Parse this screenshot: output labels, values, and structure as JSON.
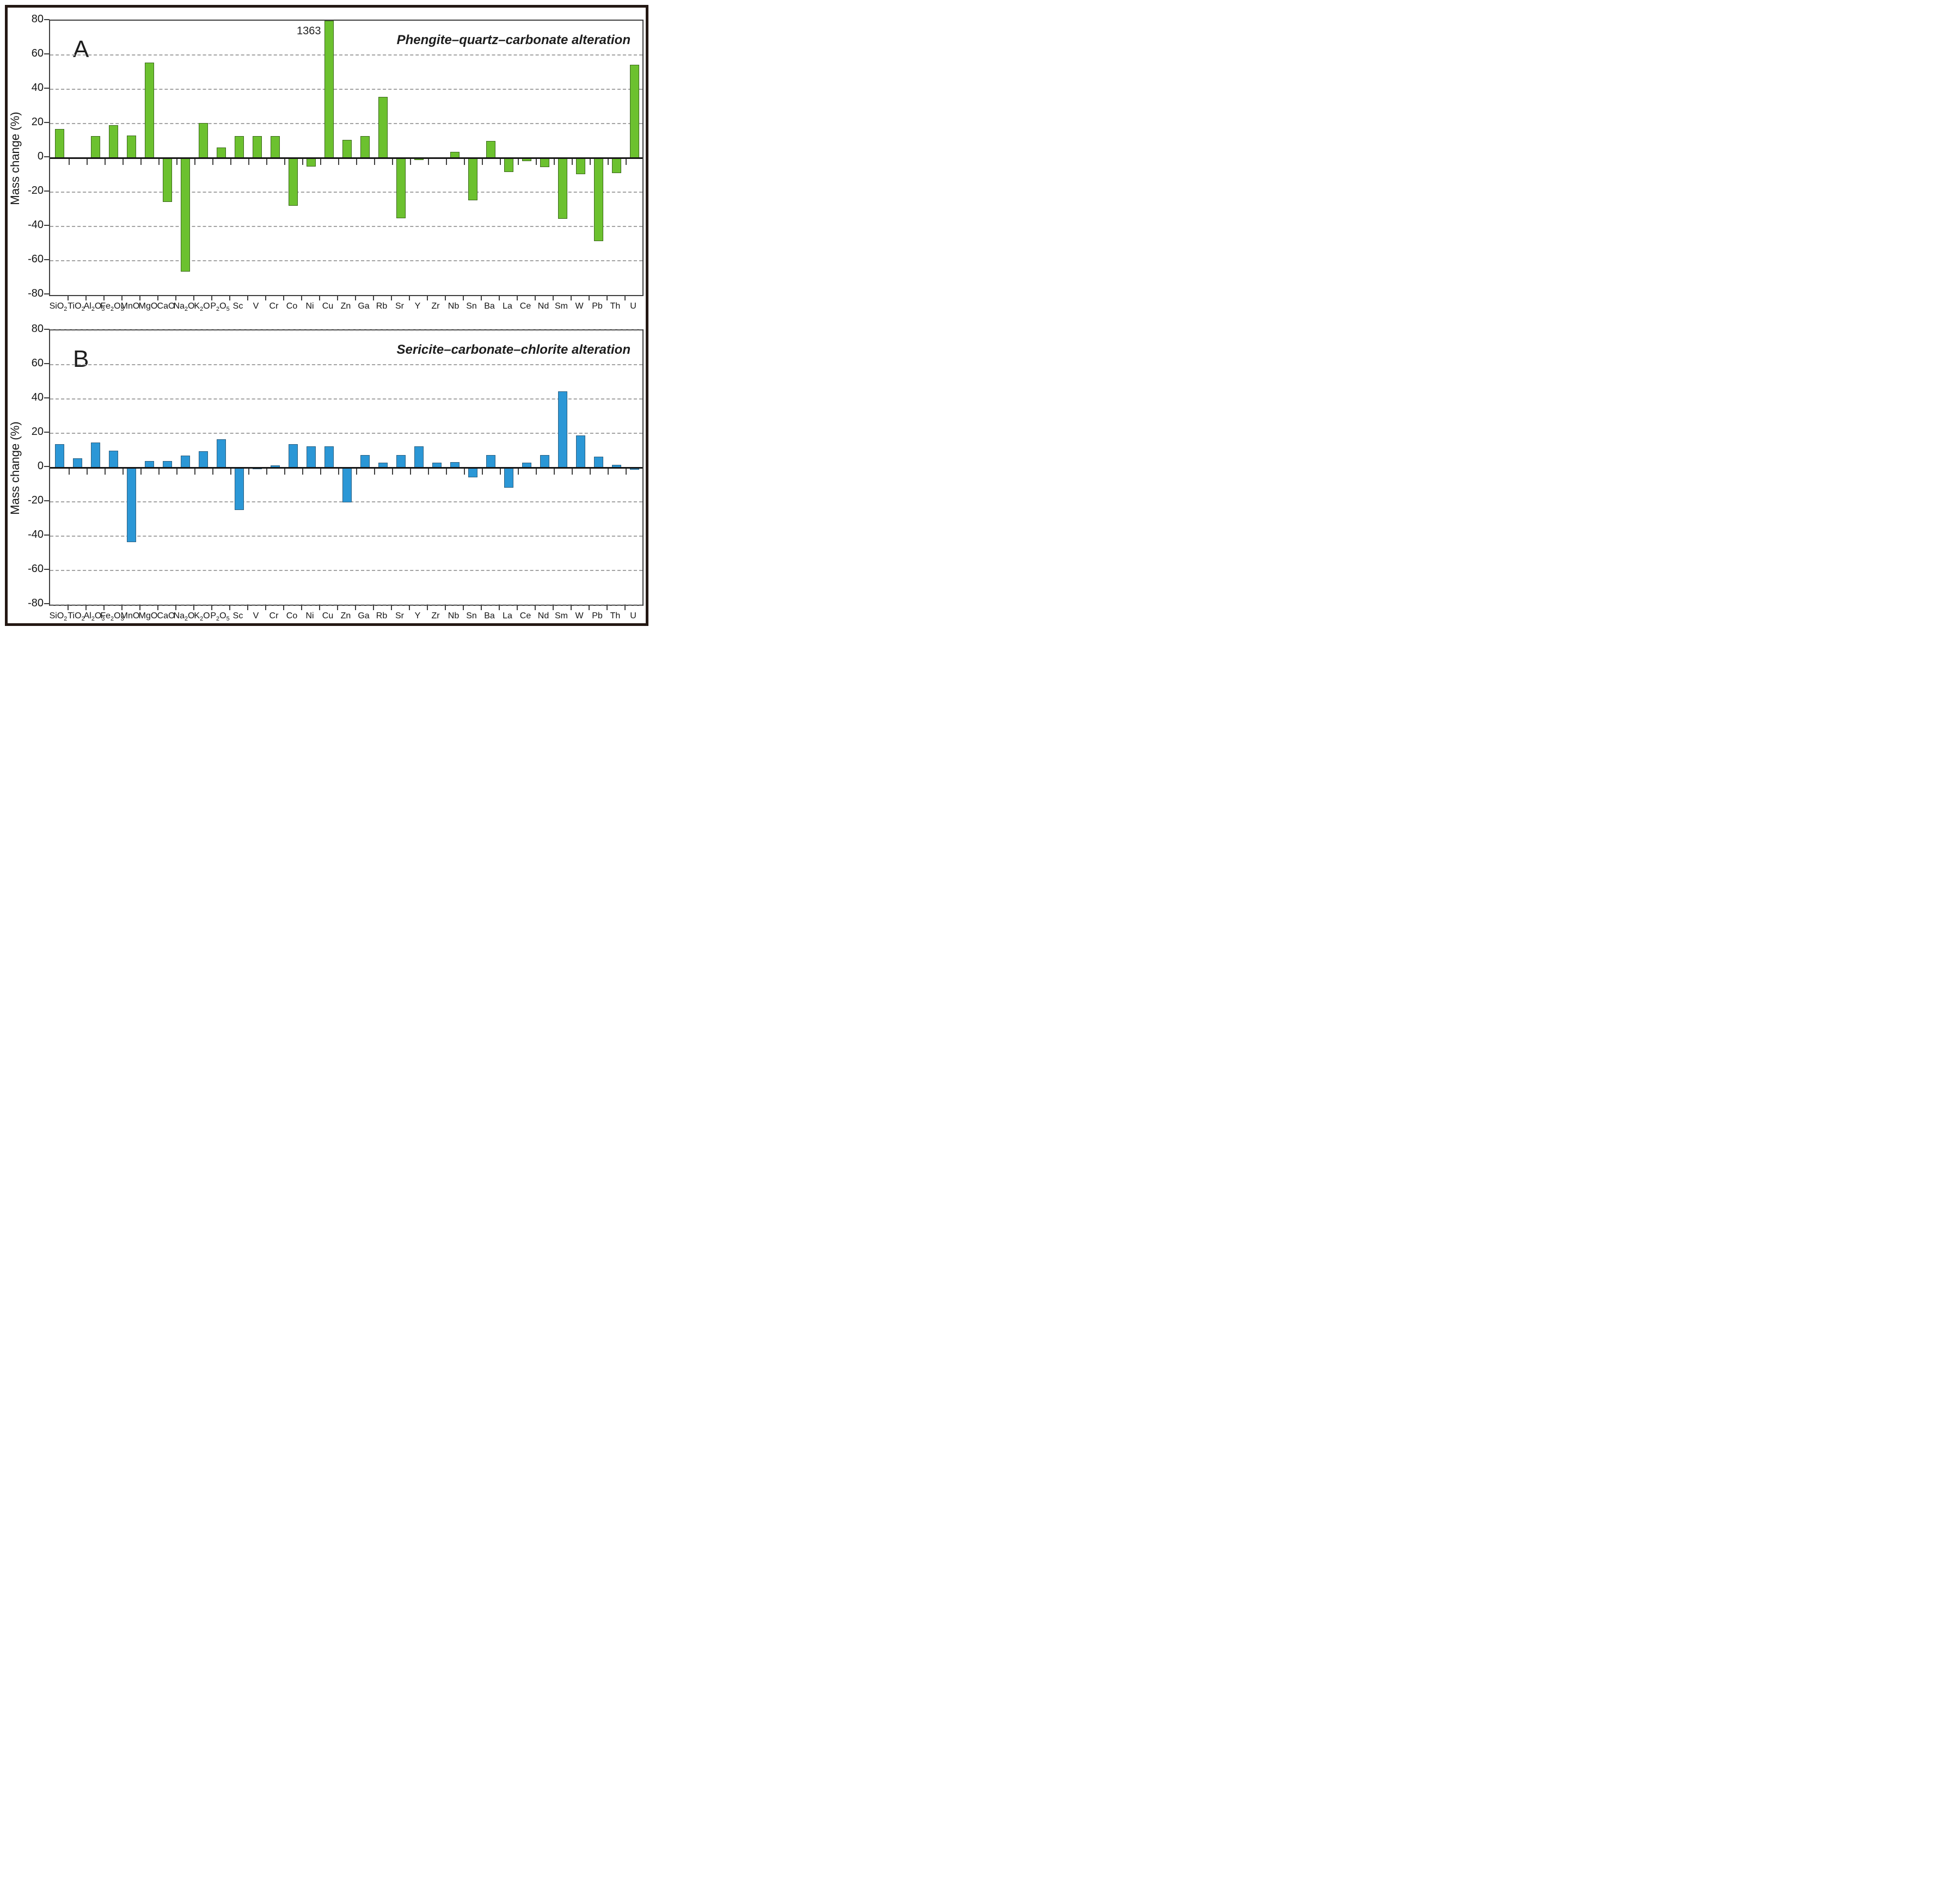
{
  "figure": {
    "ylabel": "Mass change (%)",
    "y_tick_values": [
      80,
      60,
      40,
      20,
      0,
      -20,
      -40,
      -60,
      -80
    ],
    "categories": [
      "SiO2",
      "TiO2",
      "Al2O3",
      "Fe2O3",
      "MnO",
      "MgO",
      "CaO",
      "Na2O",
      "K2O",
      "P2O5",
      "Sc",
      "V",
      "Cr",
      "Co",
      "Ni",
      "Cu",
      "Zn",
      "Ga",
      "Rb",
      "Sr",
      "Y",
      "Zr",
      "Nb",
      "Sn",
      "Ba",
      "La",
      "Ce",
      "Nd",
      "Sm",
      "W",
      "Pb",
      "Th",
      "U"
    ],
    "colors": {
      "panel_a_bar": "#6CC12F",
      "panel_b_bar": "#2B97D6",
      "frame": "#241813",
      "grid": "#a3a3a3"
    }
  },
  "chart_data": [
    {
      "type": "bar",
      "panel": "A",
      "title": "Phengite–quartz–carbonate alteration",
      "ylabel": "Mass change (%)",
      "ylim": [
        -80,
        80
      ],
      "grid": "dashed horizontal every 20",
      "legend": "none",
      "bar_color": "#6CC12F",
      "categories": [
        "SiO2",
        "TiO2",
        "Al2O3",
        "Fe2O3",
        "MnO",
        "MgO",
        "CaO",
        "Na2O",
        "K2O",
        "P2O5",
        "Sc",
        "V",
        "Cr",
        "Co",
        "Ni",
        "Cu",
        "Zn",
        "Ga",
        "Rb",
        "Sr",
        "Y",
        "Zr",
        "Nb",
        "Sn",
        "Ba",
        "La",
        "Ce",
        "Nd",
        "Sm",
        "W",
        "Pb",
        "Th",
        "U"
      ],
      "values": [
        16.8,
        -0.5,
        12.6,
        18.9,
        13.0,
        55.5,
        -25.8,
        -66.3,
        20.4,
        5.9,
        12.6,
        12.6,
        12.6,
        -28.0,
        -5.0,
        1363,
        10.6,
        12.6,
        35.6,
        -35.2,
        -1.4,
        0,
        3.4,
        -24.8,
        10.0,
        -8.1,
        -1.9,
        -5.5,
        -35.7,
        -9.5,
        -48.7,
        -9.0,
        54.3
      ],
      "clip_note": {
        "category": "Cu",
        "value_label": "1363",
        "clipped_at": 80
      },
      "edge_gridlines": false
    },
    {
      "type": "bar",
      "panel": "B",
      "title": "Sericite–carbonate–chlorite alteration",
      "ylabel": "Mass change (%)",
      "ylim": [
        -80,
        80
      ],
      "grid": "dashed horizontal every 20",
      "legend": "none",
      "bar_color": "#2B97D6",
      "categories": [
        "SiO2",
        "TiO2",
        "Al2O3",
        "Fe2O3",
        "MnO",
        "MgO",
        "CaO",
        "Na2O",
        "K2O",
        "P2O5",
        "Sc",
        "V",
        "Cr",
        "Co",
        "Ni",
        "Cu",
        "Zn",
        "Ga",
        "Rb",
        "Sr",
        "Y",
        "Zr",
        "Nb",
        "Sn",
        "Ba",
        "La",
        "Ce",
        "Nd",
        "Sm",
        "W",
        "Pb",
        "Th",
        "U"
      ],
      "values": [
        13.6,
        5.4,
        14.7,
        9.9,
        -43.5,
        3.8,
        3.8,
        6.9,
        9.5,
        16.5,
        -24.8,
        -0.9,
        1.2,
        13.5,
        12.5,
        12.4,
        -20.2,
        7.4,
        2.8,
        7.4,
        12.4,
        2.8,
        3.3,
        -5.8,
        7.4,
        -11.9,
        2.8,
        7.4,
        44.4,
        18.7,
        6.4,
        1.7,
        -1.3
      ],
      "clip_note": null,
      "edge_gridlines": true
    }
  ]
}
